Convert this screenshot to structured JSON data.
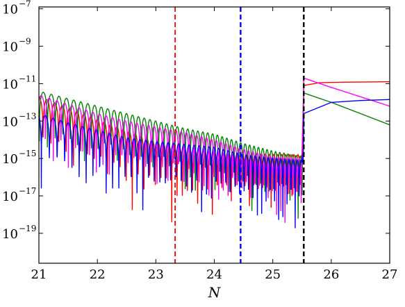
{
  "chart_data": {
    "type": "line",
    "title": "",
    "xlabel": "N",
    "ylabel": "",
    "xlim": [
      21,
      27
    ],
    "ylim_log10": [
      -20.6,
      -6.9
    ],
    "yscale": "log",
    "grid": false,
    "legend": "none",
    "x_ticks": [
      "21",
      "22",
      "23",
      "24",
      "25",
      "26",
      "27"
    ],
    "y_ticks": [
      {
        "value": -7,
        "base": "10",
        "exp": "−7"
      },
      {
        "value": -9,
        "base": "10",
        "exp": "−9"
      },
      {
        "value": -11,
        "base": "10",
        "exp": "−11"
      },
      {
        "value": -13,
        "base": "10",
        "exp": "−13"
      },
      {
        "value": -15,
        "base": "10",
        "exp": "−15"
      },
      {
        "value": -17,
        "base": "10",
        "exp": "−17"
      },
      {
        "value": -19,
        "base": "10",
        "exp": "−19"
      }
    ],
    "vlines": [
      {
        "x": 23.33,
        "color": "#ff0000"
      },
      {
        "x": 24.45,
        "color": "#0000ff"
      },
      {
        "x": 25.53,
        "color": "#000000"
      }
    ],
    "series": [
      {
        "color": "#ff0000",
        "values": [
          [
            21,
            -11.7
          ],
          [
            21.5,
            -12.3
          ],
          [
            22,
            -12.9
          ],
          [
            22.5,
            -13.5
          ],
          [
            23,
            -14.1
          ],
          [
            23.33,
            -14.4
          ],
          [
            23.5,
            -14.5
          ],
          [
            24.0,
            -14.7
          ],
          [
            24.45,
            -14.75
          ],
          [
            25.0,
            -14.78
          ],
          [
            25.5,
            -14.8
          ],
          [
            25.53,
            -11.1
          ],
          [
            25.8,
            -10.95
          ],
          [
            26.2,
            -10.92
          ],
          [
            27,
            -10.9
          ]
        ]
      },
      {
        "color": "#008000",
        "values": [
          [
            21,
            -11.4
          ],
          [
            21.5,
            -11.8
          ],
          [
            22,
            -12.2
          ],
          [
            22.5,
            -12.6
          ],
          [
            23,
            -13.0
          ],
          [
            23.5,
            -13.4
          ],
          [
            24,
            -13.7
          ],
          [
            24.5,
            -14.2
          ],
          [
            25,
            -14.6
          ],
          [
            25.5,
            -14.9
          ],
          [
            25.53,
            -11.5
          ],
          [
            26,
            -12.0
          ],
          [
            26.5,
            -12.6
          ],
          [
            27,
            -13.2
          ]
        ]
      },
      {
        "color": "#ff00ff",
        "values": [
          [
            21,
            -11.6
          ],
          [
            21.5,
            -12.1
          ],
          [
            22,
            -12.6
          ],
          [
            22.5,
            -13.0
          ],
          [
            23,
            -13.3
          ],
          [
            23.5,
            -13.6
          ],
          [
            24,
            -14.0
          ],
          [
            24.5,
            -14.5
          ],
          [
            25,
            -14.9
          ],
          [
            25.5,
            -15.0
          ],
          [
            25.53,
            -10.7
          ],
          [
            26,
            -11.2
          ],
          [
            26.5,
            -11.7
          ],
          [
            27,
            -12.2
          ]
        ]
      },
      {
        "color": "#0000ff",
        "values": [
          [
            21,
            -12.6
          ],
          [
            21.5,
            -13.1
          ],
          [
            22,
            -13.5
          ],
          [
            22.5,
            -13.9
          ],
          [
            23,
            -14.1
          ],
          [
            23.5,
            -14.25
          ],
          [
            24,
            -14.4
          ],
          [
            24.5,
            -14.8
          ],
          [
            25,
            -15.0
          ],
          [
            25.5,
            -15.1
          ],
          [
            25.53,
            -12.6
          ],
          [
            26,
            -12.0
          ],
          [
            26.5,
            -11.9
          ],
          [
            27,
            -11.85
          ]
        ]
      }
    ]
  }
}
